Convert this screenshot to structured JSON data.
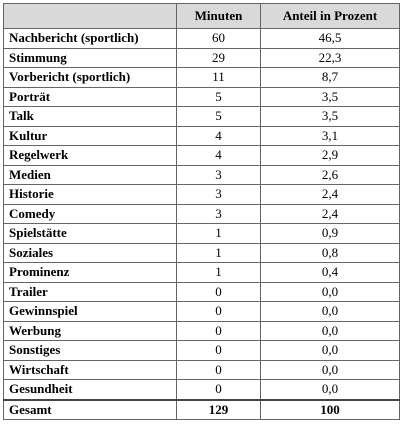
{
  "table": {
    "header": [
      "Minuten",
      "Anteil in Prozent"
    ],
    "rows": [
      [
        "Nachbericht (sportlich)",
        "60",
        "46,5"
      ],
      [
        "Stimmung",
        "29",
        "22,3"
      ],
      [
        "Vorbericht (sportlich)",
        "11",
        "8,7"
      ],
      [
        "Porträt",
        "5",
        "3,5"
      ],
      [
        "Talk",
        "5",
        "3,5"
      ],
      [
        "Kultur",
        "4",
        "3,1"
      ],
      [
        "Regelwerk",
        "4",
        "2,9"
      ],
      [
        "Medien",
        "3",
        "2,6"
      ],
      [
        "Historie",
        "3",
        "2,4"
      ],
      [
        "Comedy",
        "3",
        "2,4"
      ],
      [
        "Spielstätte",
        "1",
        "0,9"
      ],
      [
        "Soziales",
        "1",
        "0,8"
      ],
      [
        "Prominenz",
        "1",
        "0,4"
      ],
      [
        "Trailer",
        "0",
        "0,0"
      ],
      [
        "Gewinnspiel",
        "0",
        "0,0"
      ],
      [
        "Werbung",
        "0",
        "0,0"
      ],
      [
        "Sonstiges",
        "0",
        "0,0"
      ],
      [
        "Wirtschaft",
        "0",
        "0,0"
      ],
      [
        "Gesundheit",
        "0",
        "0,0"
      ]
    ],
    "total": [
      "Gesamt",
      "129",
      "100"
    ]
  }
}
